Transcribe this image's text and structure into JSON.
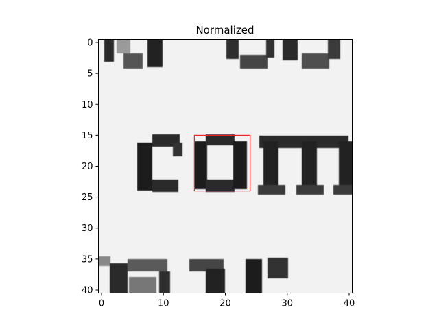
{
  "chart_data": {
    "type": "heatmap",
    "title": "Normalized",
    "xlabel": "",
    "ylabel": "",
    "xlim": [
      -0.5,
      40.5
    ],
    "ylim": [
      40.5,
      -0.5
    ],
    "x_ticks": [
      0,
      10,
      20,
      30,
      40
    ],
    "y_ticks": [
      0,
      5,
      10,
      15,
      20,
      25,
      30,
      35,
      40
    ],
    "grid": false,
    "colormap": "gray",
    "background_value": 0.95,
    "content": "grayscale crop of printed text showing the word \"com\" in the middle row",
    "highlight_box": {
      "x0": 15,
      "y0": 15,
      "x1": 24,
      "y1": 24,
      "color": "#e8262a"
    }
  }
}
